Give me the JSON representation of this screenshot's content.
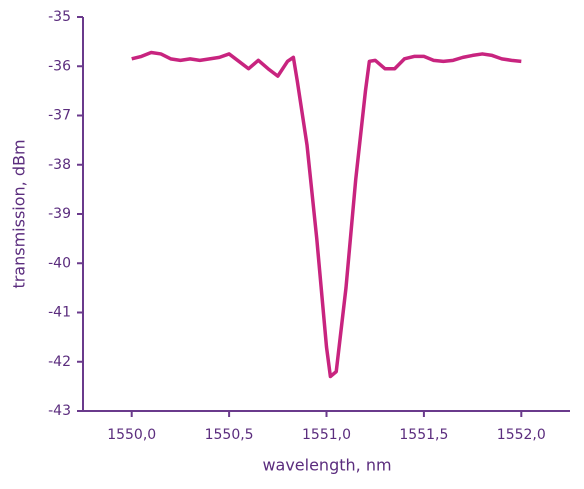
{
  "chart_data": {
    "type": "line",
    "x_label": "wavelength, nm",
    "y_label": "transmission, dBm",
    "xlim": [
      1549.75,
      1552.25
    ],
    "ylim": [
      -43,
      -35
    ],
    "xticks": [
      {
        "value": 1550.0,
        "label": "1550,0"
      },
      {
        "value": 1550.5,
        "label": "1550,5"
      },
      {
        "value": 1551.0,
        "label": "1551,0"
      },
      {
        "value": 1551.5,
        "label": "1551,5"
      },
      {
        "value": 1552.0,
        "label": "1552,0"
      }
    ],
    "yticks": [
      -43,
      -42,
      -41,
      -40,
      -39,
      -38,
      -37,
      -36,
      -35
    ],
    "grid": false,
    "axis_color": "#6a3a8c",
    "series": [
      {
        "color": "#c8247f",
        "x": [
          1550.0,
          1550.05,
          1550.1,
          1550.15,
          1550.2,
          1550.25,
          1550.3,
          1550.35,
          1550.4,
          1550.45,
          1550.5,
          1550.55,
          1550.6,
          1550.65,
          1550.7,
          1550.75,
          1550.8,
          1550.83,
          1550.85,
          1550.9,
          1550.95,
          1551.0,
          1551.02,
          1551.05,
          1551.1,
          1551.15,
          1551.2,
          1551.22,
          1551.25,
          1551.3,
          1551.35,
          1551.4,
          1551.45,
          1551.5,
          1551.55,
          1551.6,
          1551.65,
          1551.7,
          1551.75,
          1551.8,
          1551.85,
          1551.9,
          1551.95,
          1552.0
        ],
        "values": [
          -35.85,
          -35.8,
          -35.72,
          -35.75,
          -35.85,
          -35.88,
          -35.85,
          -35.88,
          -35.85,
          -35.82,
          -35.75,
          -35.9,
          -36.05,
          -35.88,
          -36.05,
          -36.2,
          -35.9,
          -35.82,
          -36.3,
          -37.6,
          -39.5,
          -41.7,
          -42.3,
          -42.2,
          -40.5,
          -38.3,
          -36.5,
          -35.9,
          -35.88,
          -36.05,
          -36.05,
          -35.85,
          -35.8,
          -35.8,
          -35.88,
          -35.9,
          -35.88,
          -35.82,
          -35.78,
          -35.75,
          -35.78,
          -35.85,
          -35.88,
          -35.9
        ]
      }
    ]
  }
}
